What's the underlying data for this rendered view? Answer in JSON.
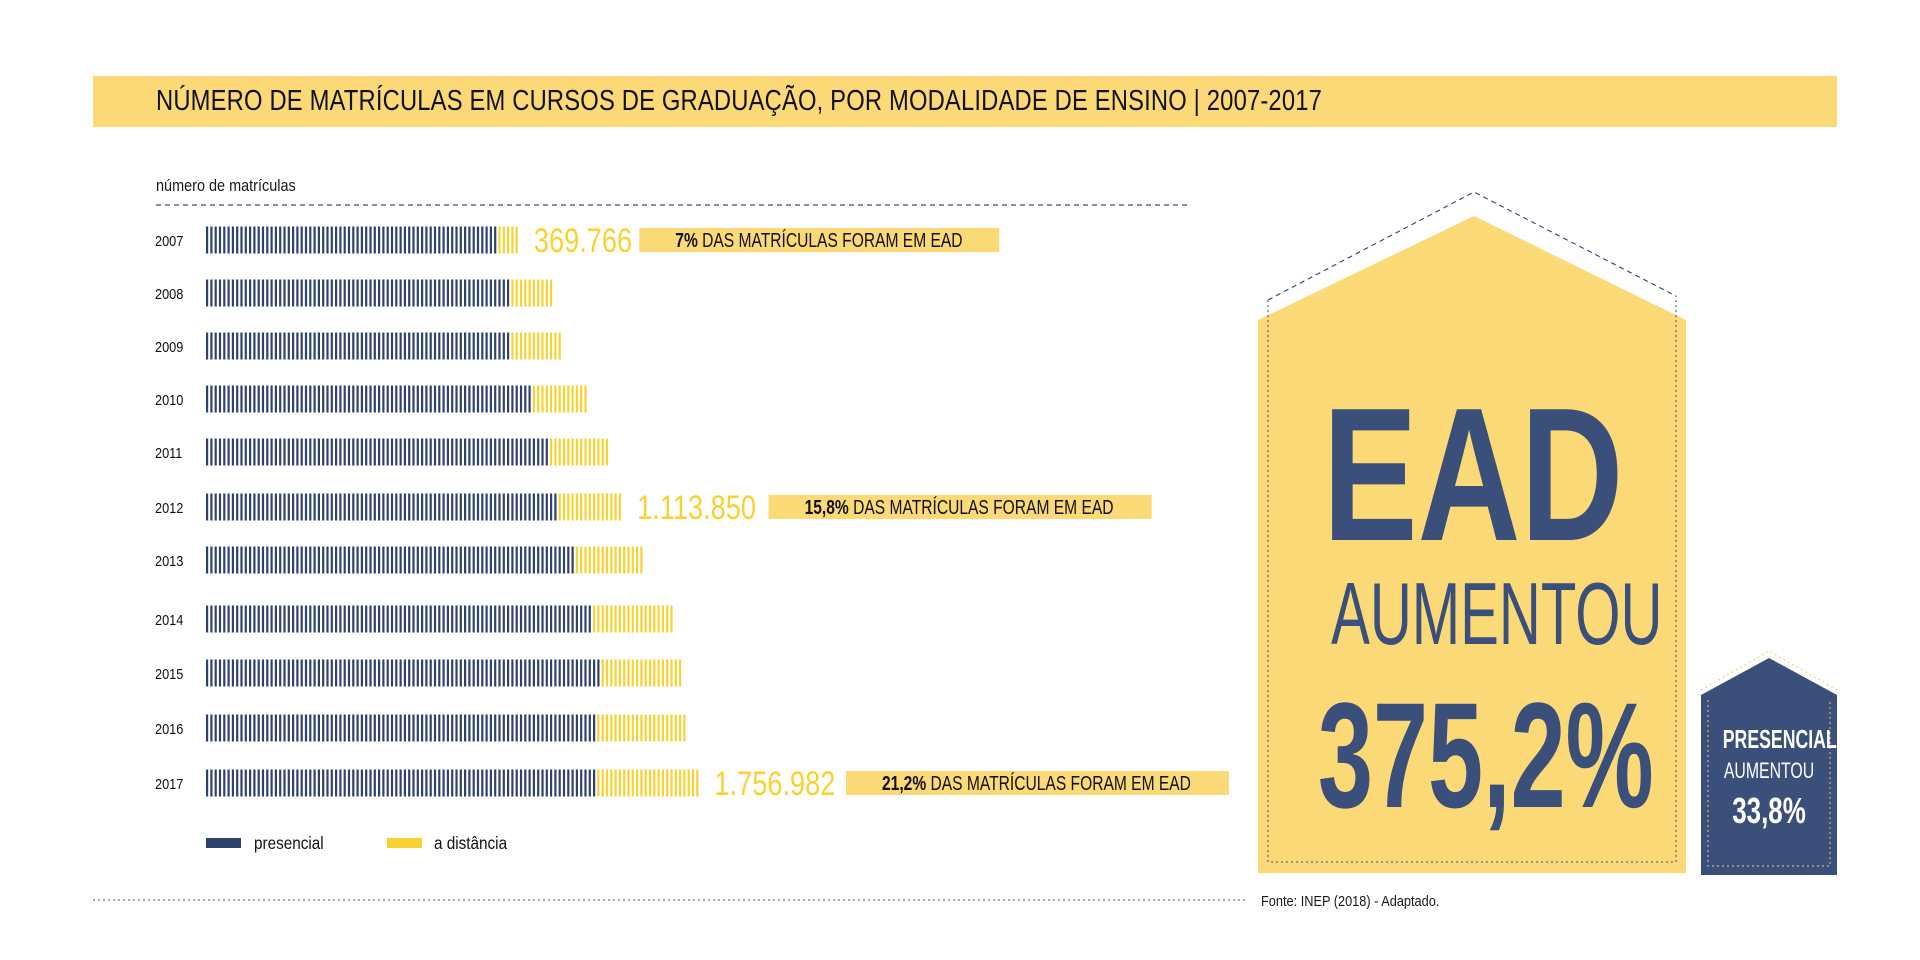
{
  "header": {
    "title": "NÚMERO DE MATRÍCULAS EM CURSOS DE GRADUAÇÃO, POR MODALIDADE DE ENSINO | 2007-2017"
  },
  "chart_data": {
    "type": "bar",
    "orientation": "horizontal",
    "stacked": true,
    "ylabel": "número de matrículas",
    "categories": [
      "2007",
      "2008",
      "2009",
      "2010",
      "2011",
      "2012",
      "2013",
      "2014",
      "2015",
      "2016",
      "2017"
    ],
    "series": [
      {
        "name": "presencial",
        "color": "#2f426f",
        "values": [
          4880381,
          5080056,
          5115896,
          5449120,
          5746762,
          5923838,
          6152405,
          6486171,
          6633545,
          6554283,
          6529681
        ]
      },
      {
        "name": "a distância",
        "color": "#f9d232",
        "values": [
          369766,
          727961,
          838125,
          930179,
          992927,
          1113850,
          1153572,
          1341842,
          1393752,
          1494418,
          1756982
        ]
      }
    ],
    "annotations": [
      {
        "category": "2007",
        "total_label": "369.766",
        "note_bold": "7%",
        "note_text": "DAS MATRÍCULAS FORAM EM EAD"
      },
      {
        "category": "2012",
        "total_label": "1.113.850",
        "note_bold": "15,8%",
        "note_text": "DAS MATRÍCULAS FORAM EM EAD"
      },
      {
        "category": "2017",
        "total_label": "1.756.982",
        "note_bold": "21,2%",
        "note_text": "DAS MATRÍCULAS FORAM EM EAD"
      }
    ],
    "legend": {
      "placement": "bottom-left"
    }
  },
  "callout_ead": {
    "line1": "EAD",
    "line2": "AUMENTOU",
    "line3": "375,2%"
  },
  "callout_presencial": {
    "line1": "PRESENCIAL",
    "line2": "AUMENTOU",
    "line3": "33,8%"
  },
  "source": "Fonte: INEP (2018) - Adaptado.",
  "colors": {
    "title_band": "#fcd977",
    "navy": "#2f426f",
    "yellow": "#f9d232",
    "callout_navy": "#3a4f7a"
  }
}
